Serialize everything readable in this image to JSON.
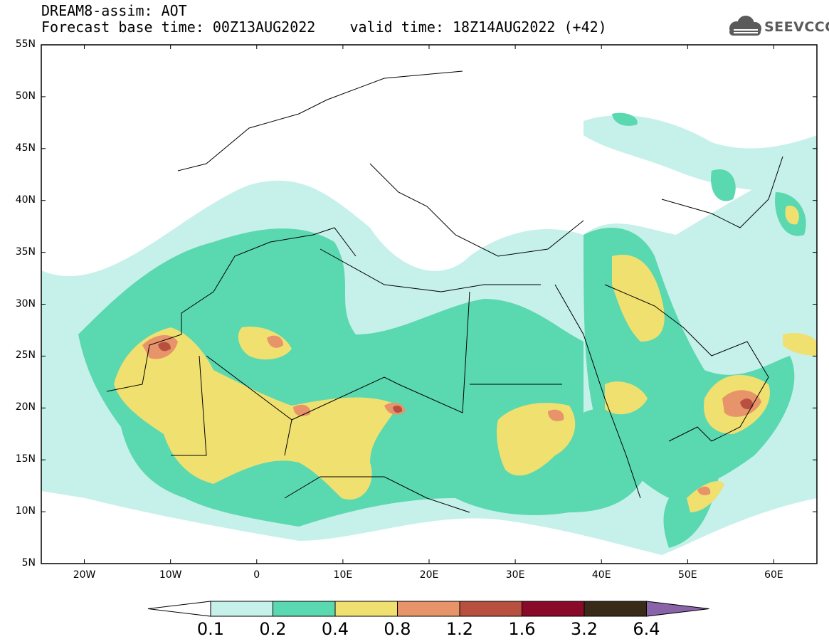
{
  "title": {
    "line1": "DREAM8-assim: AOT",
    "line2": "Forecast base time: 00Z13AUG2022    valid time: 18Z14AUG2022 (+42)"
  },
  "logo": {
    "text": "SEEVCCC",
    "icon": "cloud-icon"
  },
  "map": {
    "lat_labels": [
      "55N",
      "50N",
      "45N",
      "40N",
      "35N",
      "30N",
      "25N",
      "20N",
      "15N",
      "10N",
      "5N"
    ],
    "lon_labels": [
      "20W",
      "10W",
      "0",
      "10E",
      "20E",
      "30E",
      "40E",
      "50E",
      "60E"
    ],
    "lat_range": [
      5,
      55
    ],
    "lon_range": [
      -25,
      65
    ]
  },
  "colorbar": {
    "labels": [
      "0.1",
      "0.2",
      "0.4",
      "0.8",
      "1.2",
      "1.6",
      "3.2",
      "6.4"
    ],
    "colors": [
      "#ffffff",
      "#c6f0ea",
      "#5ad8b0",
      "#f0e070",
      "#e8946a",
      "#b85040",
      "#8a0a2a",
      "#3a2a18",
      "#8a64a8"
    ]
  }
}
